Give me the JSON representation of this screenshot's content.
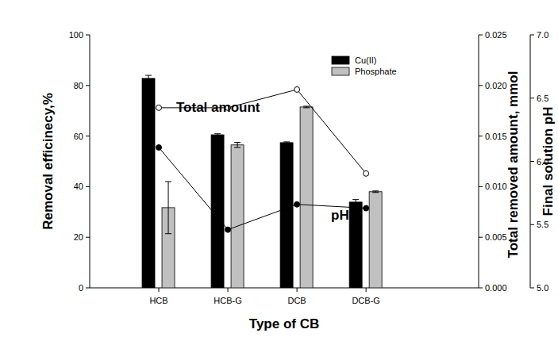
{
  "chart_data": {
    "type": "bar",
    "x_label": "Type of CB",
    "y_label": "Removal efficinecy,%",
    "y2_label": "Total removed amount, mmol",
    "y3_label": "Final solution pH",
    "categories": [
      "HCB",
      "HCB-G",
      "DCB",
      "DCB-G"
    ],
    "series": [
      {
        "name": "Cu(II)",
        "type": "bar",
        "color": "#000000",
        "values": [
          82.8,
          60.5,
          57.4,
          33.9
        ],
        "errors": [
          1.2,
          0.4,
          0.3,
          1.0
        ]
      },
      {
        "name": "Phosphate",
        "type": "bar",
        "color": "#c0c0c0",
        "values": [
          31.7,
          56.5,
          71.5,
          38.0
        ],
        "errors": [
          10.3,
          1.0,
          0.3,
          0.3
        ]
      },
      {
        "name": "Total amount",
        "type": "line",
        "axis": "y2",
        "color": "#000000",
        "marker": "circle-open",
        "values": [
          0.0178,
          0.0178,
          0.0196,
          0.0113
        ]
      },
      {
        "name": "pH",
        "type": "line",
        "axis": "y3",
        "color": "#000000",
        "marker": "circle",
        "values": [
          6.11,
          5.46,
          5.66,
          5.63
        ]
      }
    ],
    "ylim": [
      0,
      100
    ],
    "yticks": [
      0,
      20,
      40,
      60,
      80,
      100
    ],
    "y2lim": [
      0,
      0.025
    ],
    "y2ticks": [
      {
        "value": 0,
        "label": "0.000"
      },
      {
        "value": 0.005,
        "label": "0.005"
      },
      {
        "value": 0.01,
        "label": "0.010"
      },
      {
        "value": 0.015,
        "label": "0.015"
      },
      {
        "value": 0.02,
        "label": "0.020"
      },
      {
        "value": 0.025,
        "label": "0.025"
      }
    ],
    "y3lim": [
      5,
      7
    ],
    "y3ticks": [
      {
        "value": 5,
        "label": "5.0"
      },
      {
        "value": 5.5,
        "label": "5.5"
      },
      {
        "value": 6,
        "label": "6.0"
      },
      {
        "value": 6.5,
        "label": "6.5"
      },
      {
        "value": 7,
        "label": "7.0"
      }
    ],
    "legend": "top-right",
    "grid": false
  }
}
